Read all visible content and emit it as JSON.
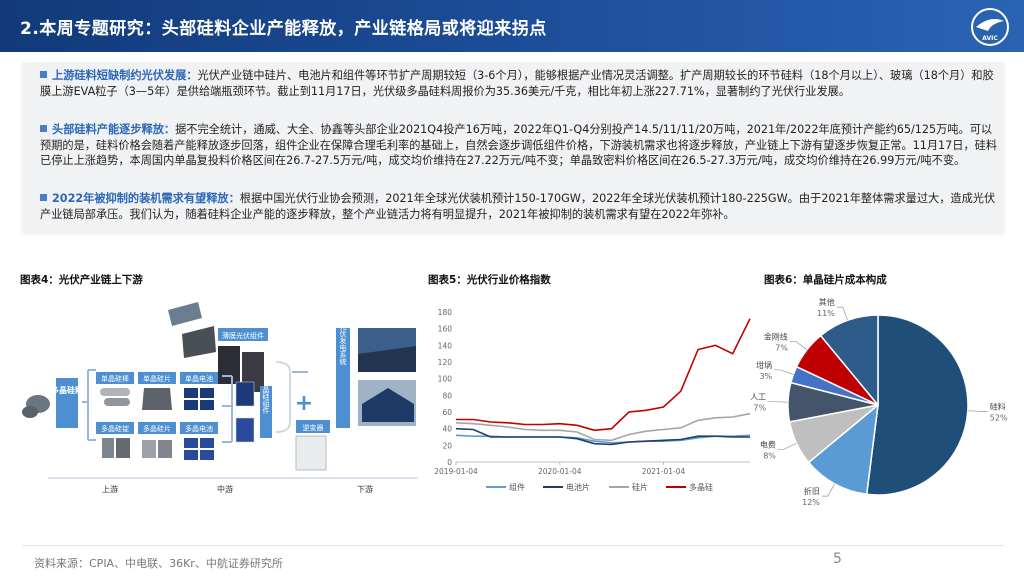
{
  "header": {
    "title": "2.本周专题研究：头部硅料企业产能释放，产业链格局或将迎来拐点",
    "logo_text": "AVIC"
  },
  "summary": [
    {
      "heading": "上游硅料短缺制约光伏发展：",
      "body": "光伏产业链中硅片、电池片和组件等环节扩产周期较短（3-6个月），能够根据产业情况灵活调整。扩产周期较长的环节硅料（18个月以上）、玻璃（18个月）和胶膜上游EVA粒子（3—5年）是供给端瓶颈环节。截止到11月17日，光伏级多晶硅料周报价为35.36美元/千克，相比年初上涨227.71%，显著制约了光伏行业发展。"
    },
    {
      "heading": "头部硅料产能逐步释放：",
      "body": "据不完全统计，通威、大全、协鑫等头部企业2021Q4投产16万吨，2022年Q1-Q4分别投产14.5/11/11/20万吨，2021年/2022年底预计产能约65/125万吨。可以预期的是，硅料价格会随着产能释放逐步回落，组件企业在保障合理毛利率的基础上，自然会逐步调低组件价格，下游装机需求也将逐步释放，产业链上下游有望逐步恢复正常。11月17日，硅料已停止上涨趋势，本周国内单晶复投料价格区间在26.7-27.5万元/吨，成交均价维持在27.22万元/吨不变；单晶致密料价格区间在26.5-27.3万元/吨，成交均价维持在26.99万元/吨不变。"
    },
    {
      "heading": "2022年被抑制的装机需求有望释放：",
      "body": "根据中国光伏行业协会预测，2021年全球光伏装机预计150-170GW，2022年全球光伏装机预计180-225GW。由于2021年整体需求量过大，造成光伏产业链局部承压。我们认为，随着硅料企业产能的逐步释放，整个产业链活力将有明显提升，2021年被抑制的装机需求有望在2022年弥补。"
    }
  ],
  "figures": {
    "fig4": {
      "title": "图表4：光伏产业链上下游",
      "nodes": {
        "poly": "多晶硅料",
        "mono_rod": "单晶硅棒",
        "mono_wafer": "单晶硅片",
        "mono_cell": "单晶电池",
        "multi_ingot": "多晶硅锭",
        "multi_wafer": "多晶硅片",
        "multi_cell": "多晶电池",
        "thin_film": "薄膜光伏组件",
        "crystal_module": "晶硅组件",
        "system": "光伏发电系统",
        "inverter": "逆变器",
        "plus": "+"
      },
      "stages": [
        "上游",
        "中游",
        "下游"
      ]
    },
    "fig5": {
      "title": "图表5：光伏行业价格指数"
    },
    "fig6": {
      "title": "图表6：单晶硅片成本构成"
    }
  },
  "chart_data": [
    {
      "type": "line",
      "ylim": [
        0,
        180
      ],
      "yticks": [
        "0",
        "20",
        "40",
        "60",
        "80",
        "100",
        "120",
        "140",
        "160",
        "180"
      ],
      "xticks": [
        "2019-01-04",
        "2020-01-04",
        "2021-01-04"
      ],
      "x": [
        "2019-01-04",
        "2019-03",
        "2019-05",
        "2019-07",
        "2019-09",
        "2019-11",
        "2020-01-04",
        "2020-03",
        "2020-05",
        "2020-07",
        "2020-09",
        "2020-11",
        "2021-01-04",
        "2021-03",
        "2021-05",
        "2021-07",
        "2021-09",
        "2021-11"
      ],
      "series": [
        {
          "name": "组件",
          "color": "#5b9bd5",
          "values": [
            32,
            31,
            31,
            30,
            30,
            30,
            30,
            29,
            25,
            23,
            24,
            25,
            25,
            26,
            29,
            31,
            31,
            32
          ]
        },
        {
          "name": "电池片",
          "color": "#1f3f66",
          "values": [
            40,
            39,
            30,
            30,
            30,
            30,
            30,
            28,
            22,
            21,
            24,
            25,
            26,
            27,
            31,
            31,
            30,
            30
          ]
        },
        {
          "name": "硅片",
          "color": "#a5a5a5",
          "values": [
            47,
            46,
            44,
            42,
            39,
            38,
            38,
            36,
            27,
            26,
            33,
            37,
            39,
            41,
            50,
            53,
            54,
            58
          ]
        },
        {
          "name": "多晶硅",
          "color": "#c00000",
          "values": [
            51,
            51,
            48,
            47,
            45,
            45,
            46,
            44,
            38,
            40,
            60,
            62,
            66,
            85,
            135,
            140,
            130,
            172
          ]
        }
      ]
    },
    {
      "type": "pie",
      "labels": [
        "硅料",
        "折旧",
        "电费",
        "人工",
        "坩埚",
        "金刚线",
        "其他"
      ],
      "values": [
        52,
        12,
        8,
        7,
        3,
        7,
        11
      ],
      "value_labels": [
        "52%",
        "12%",
        "8%",
        "7%",
        "3%",
        "7%",
        "11%"
      ],
      "colors": [
        "#1f4e79",
        "#5b9bd5",
        "#bfbfbf",
        "#44546a",
        "#4472c4",
        "#c00000",
        "#2e5c8a"
      ]
    }
  ]
}
